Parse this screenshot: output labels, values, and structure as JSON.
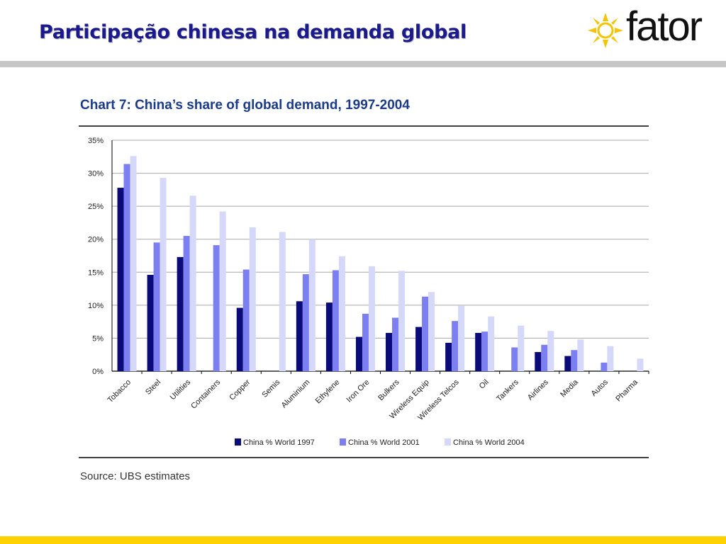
{
  "slide": {
    "title": "Participação chinesa na demanda global",
    "logo_text": "fator"
  },
  "colors": {
    "title": "#1a1a8e",
    "header_rule": "#c6c6c6",
    "footer_rule": "#ffd200",
    "logo_sun": "#f5c400"
  },
  "chart_data": {
    "type": "bar",
    "title": "Chart 7: China’s share of global demand, 1997-2004",
    "source": "Source: UBS estimates",
    "categories": [
      "Tobacco",
      "Steel",
      "Utilities",
      "Containers",
      "Copper",
      "Semis",
      "Aluminium",
      "Ethylene",
      "Iron Ore",
      "Bulkers",
      "Wireless Equip",
      "Wireless Telcos",
      "Oil",
      "Tankers",
      "Airlines",
      "Media",
      "Autos",
      "Pharma"
    ],
    "series": [
      {
        "name": "China % World 1997",
        "color": "#0a0a78",
        "values": [
          27.8,
          14.6,
          17.3,
          0,
          9.6,
          0,
          10.6,
          10.4,
          5.2,
          5.8,
          6.7,
          4.3,
          5.8,
          0,
          2.9,
          2.3,
          0,
          0
        ]
      },
      {
        "name": "China % World 2001",
        "color": "#7b7ff2",
        "values": [
          31.4,
          19.5,
          20.5,
          19.1,
          15.4,
          0,
          14.7,
          15.3,
          8.7,
          8.1,
          11.3,
          7.6,
          6.0,
          3.6,
          4.0,
          3.2,
          1.3,
          0
        ]
      },
      {
        "name": "China % World 2004",
        "color": "#d6d8fa",
        "values": [
          32.6,
          29.3,
          26.6,
          24.2,
          21.8,
          21.1,
          20.0,
          17.4,
          15.9,
          15.2,
          12.0,
          9.9,
          8.3,
          6.9,
          6.1,
          4.8,
          3.8,
          1.9
        ]
      }
    ],
    "ylim": [
      0,
      35
    ],
    "yticks": [
      "0%",
      "5%",
      "10%",
      "15%",
      "20%",
      "25%",
      "30%",
      "35%"
    ],
    "ytick_values": [
      0,
      5,
      10,
      15,
      20,
      25,
      30,
      35
    ],
    "grid": true,
    "legend_placement": "bottom-center"
  }
}
